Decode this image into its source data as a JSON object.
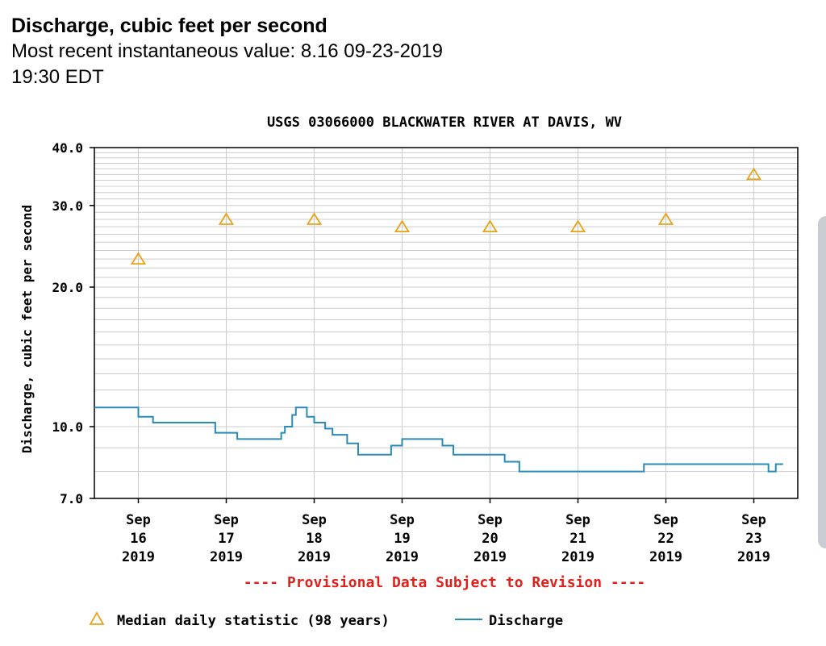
{
  "header": {
    "title": "Discharge, cubic feet per second",
    "recent_line1": "Most recent instantaneous value: 8.16 09-23-2019",
    "recent_line2": "19:30 EDT"
  },
  "chart_data": {
    "type": "line",
    "title": "USGS 03066000 BLACKWATER RIVER AT DAVIS, WV",
    "ylabel": "Discharge, cubic feet per second",
    "xlabel": "",
    "yscale": "log",
    "ylim": [
      7.0,
      40.0
    ],
    "yticks": [
      {
        "value": 7,
        "label": "7.0"
      },
      {
        "value": 10,
        "label": "10.0"
      },
      {
        "value": 20,
        "label": "20.0"
      },
      {
        "value": 30,
        "label": "30.0"
      },
      {
        "value": 40,
        "label": "40.0"
      }
    ],
    "xlim": [
      "2019-09-15T12:00",
      "2019-09-23T12:00"
    ],
    "xticks": [
      {
        "date": "2019-09-16",
        "label": [
          "Sep",
          "16",
          "2019"
        ]
      },
      {
        "date": "2019-09-17",
        "label": [
          "Sep",
          "17",
          "2019"
        ]
      },
      {
        "date": "2019-09-18",
        "label": [
          "Sep",
          "18",
          "2019"
        ]
      },
      {
        "date": "2019-09-19",
        "label": [
          "Sep",
          "19",
          "2019"
        ]
      },
      {
        "date": "2019-09-20",
        "label": [
          "Sep",
          "20",
          "2019"
        ]
      },
      {
        "date": "2019-09-21",
        "label": [
          "Sep",
          "21",
          "2019"
        ]
      },
      {
        "date": "2019-09-22",
        "label": [
          "Sep",
          "22",
          "2019"
        ]
      },
      {
        "date": "2019-09-23",
        "label": [
          "Sep",
          "23",
          "2019"
        ]
      }
    ],
    "grid": true,
    "provisional_note": "---- Provisional Data Subject to Revision ----",
    "series": [
      {
        "name": "Median daily statistic (98 years)",
        "marker": "triangle",
        "color": "#e8a317",
        "points": [
          {
            "x": "2019-09-16",
            "y": 23
          },
          {
            "x": "2019-09-17",
            "y": 28
          },
          {
            "x": "2019-09-18",
            "y": 28
          },
          {
            "x": "2019-09-19",
            "y": 27
          },
          {
            "x": "2019-09-20",
            "y": 27
          },
          {
            "x": "2019-09-21",
            "y": 27
          },
          {
            "x": "2019-09-22",
            "y": 28
          },
          {
            "x": "2019-09-23",
            "y": 35
          }
        ]
      },
      {
        "name": "Discharge",
        "color": "#2a8ab8",
        "step": true,
        "points": [
          {
            "x": "2019-09-15T12:00",
            "y": 11.0
          },
          {
            "x": "2019-09-16T00:00",
            "y": 10.5
          },
          {
            "x": "2019-09-16T04:00",
            "y": 10.2
          },
          {
            "x": "2019-09-16T21:00",
            "y": 9.7
          },
          {
            "x": "2019-09-17T03:00",
            "y": 9.4
          },
          {
            "x": "2019-09-17T15:00",
            "y": 9.7
          },
          {
            "x": "2019-09-17T16:00",
            "y": 10.0
          },
          {
            "x": "2019-09-17T18:00",
            "y": 10.6
          },
          {
            "x": "2019-09-17T19:00",
            "y": 11.0
          },
          {
            "x": "2019-09-17T22:00",
            "y": 10.5
          },
          {
            "x": "2019-09-18T00:00",
            "y": 10.2
          },
          {
            "x": "2019-09-18T03:00",
            "y": 9.9
          },
          {
            "x": "2019-09-18T05:00",
            "y": 9.6
          },
          {
            "x": "2019-09-18T09:00",
            "y": 9.2
          },
          {
            "x": "2019-09-18T12:00",
            "y": 8.7
          },
          {
            "x": "2019-09-18T21:00",
            "y": 9.1
          },
          {
            "x": "2019-09-19T00:00",
            "y": 9.4
          },
          {
            "x": "2019-09-19T11:00",
            "y": 9.1
          },
          {
            "x": "2019-09-19T14:00",
            "y": 8.7
          },
          {
            "x": "2019-09-20T04:00",
            "y": 8.4
          },
          {
            "x": "2019-09-20T08:00",
            "y": 8.0
          },
          {
            "x": "2019-09-21T18:00",
            "y": 8.3
          },
          {
            "x": "2019-09-23T04:00",
            "y": 8.0
          },
          {
            "x": "2019-09-23T06:00",
            "y": 8.3
          },
          {
            "x": "2019-09-23T08:00",
            "y": 8.3
          }
        ]
      }
    ]
  }
}
